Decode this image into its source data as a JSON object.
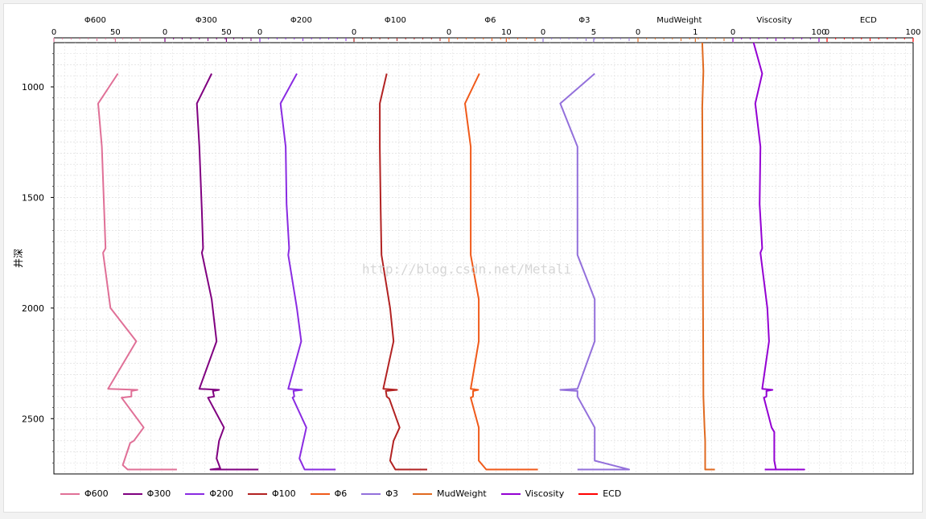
{
  "chart_data": {
    "type": "line",
    "orientation": "vertical-well-log",
    "y_axis": {
      "label": "井深",
      "range": [
        800,
        2750
      ],
      "ticks": [
        1000,
        1500,
        2000,
        2500
      ],
      "inverted": true,
      "grid": true
    },
    "x_tracks": [
      {
        "name": "Φ600",
        "color": "#e07097",
        "range": [
          0,
          70
        ],
        "ticks": [
          0,
          50
        ]
      },
      {
        "name": "Φ300",
        "color": "#800080",
        "range": [
          0,
          70
        ],
        "ticks": [
          0,
          50
        ]
      },
      {
        "name": "Φ200",
        "color": "#8a2be2",
        "range": [
          0,
          100
        ],
        "ticks": [
          0
        ]
      },
      {
        "name": "Φ100",
        "color": "#b22222",
        "range": [
          0,
          100
        ],
        "ticks": [
          0
        ]
      },
      {
        "name": "Φ6",
        "color": "#f05a1a",
        "range": [
          0,
          15
        ],
        "ticks": [
          0,
          10
        ]
      },
      {
        "name": "Φ3",
        "color": "#9370db",
        "range": [
          0,
          8.5
        ],
        "ticks": [
          0,
          5
        ]
      },
      {
        "name": "MudWeight",
        "color": "#e06a20",
        "range": [
          0,
          1.5
        ],
        "ticks": [
          0,
          1
        ]
      },
      {
        "name": "Viscosity",
        "color": "#9400d3",
        "range": [
          0,
          100
        ],
        "ticks": [
          0,
          100
        ]
      },
      {
        "name": "ECD",
        "color": "#ff0000",
        "range": [
          0,
          100
        ],
        "ticks": [
          0,
          100
        ]
      }
    ],
    "series": [
      {
        "name": "Φ600",
        "points": [
          [
            52,
            940
          ],
          [
            36,
            1075
          ],
          [
            39,
            1270
          ],
          [
            42,
            1730
          ],
          [
            40,
            1750
          ],
          [
            46,
            2000
          ],
          [
            67,
            2150
          ],
          [
            44,
            2365
          ],
          [
            68,
            2370
          ],
          [
            63,
            2375
          ],
          [
            63,
            2400
          ],
          [
            55,
            2405
          ],
          [
            73,
            2540
          ],
          [
            65,
            2600
          ],
          [
            62,
            2610
          ],
          [
            56,
            2710
          ],
          [
            60,
            2730
          ],
          [
            100,
            2730
          ]
        ]
      },
      {
        "name": "Φ300",
        "points": [
          [
            38,
            940
          ],
          [
            26,
            1075
          ],
          [
            28,
            1270
          ],
          [
            30,
            1560
          ],
          [
            31,
            1730
          ],
          [
            30,
            1750
          ],
          [
            38,
            1960
          ],
          [
            42,
            2150
          ],
          [
            28,
            2365
          ],
          [
            44,
            2370
          ],
          [
            39,
            2375
          ],
          [
            40,
            2400
          ],
          [
            35,
            2405
          ],
          [
            48,
            2540
          ],
          [
            44,
            2600
          ],
          [
            42,
            2680
          ],
          [
            45,
            2725
          ],
          [
            37,
            2730
          ],
          [
            76,
            2730
          ]
        ]
      },
      {
        "name": "Φ200",
        "points": [
          [
            43,
            940
          ],
          [
            24,
            1075
          ],
          [
            30,
            1270
          ],
          [
            31,
            1530
          ],
          [
            34,
            1730
          ],
          [
            33,
            1760
          ],
          [
            43,
            2000
          ],
          [
            48,
            2150
          ],
          [
            33,
            2365
          ],
          [
            49,
            2370
          ],
          [
            39,
            2375
          ],
          [
            40,
            2400
          ],
          [
            38,
            2405
          ],
          [
            54,
            2540
          ],
          [
            46,
            2680
          ],
          [
            52,
            2730
          ],
          [
            88,
            2730
          ]
        ]
      },
      {
        "name": "Φ100",
        "points": [
          [
            38,
            940
          ],
          [
            30,
            1075
          ],
          [
            30,
            1270
          ],
          [
            31,
            1560
          ],
          [
            32,
            1760
          ],
          [
            42,
            2000
          ],
          [
            46,
            2150
          ],
          [
            34,
            2365
          ],
          [
            50,
            2370
          ],
          [
            37,
            2375
          ],
          [
            38,
            2400
          ],
          [
            41,
            2410
          ],
          [
            53,
            2540
          ],
          [
            46,
            2600
          ],
          [
            42,
            2690
          ],
          [
            48,
            2730
          ],
          [
            85,
            2730
          ]
        ]
      },
      {
        "name": "Φ6",
        "points": [
          [
            5.3,
            940
          ],
          [
            2.8,
            1075
          ],
          [
            3.8,
            1270
          ],
          [
            3.8,
            1760
          ],
          [
            5.2,
            1960
          ],
          [
            5.2,
            2150
          ],
          [
            3.8,
            2365
          ],
          [
            5.1,
            2370
          ],
          [
            4.2,
            2375
          ],
          [
            4.2,
            2400
          ],
          [
            3.8,
            2405
          ],
          [
            5.2,
            2540
          ],
          [
            5.2,
            2690
          ],
          [
            6.5,
            2730
          ],
          [
            15.5,
            2730
          ]
        ]
      },
      {
        "name": "Φ3",
        "points": [
          [
            5.1,
            940
          ],
          [
            1.7,
            1075
          ],
          [
            3.4,
            1270
          ],
          [
            3.4,
            1760
          ],
          [
            5.1,
            1960
          ],
          [
            5.1,
            2150
          ],
          [
            3.4,
            2365
          ],
          [
            1.7,
            2370
          ],
          [
            3.4,
            2375
          ],
          [
            3.4,
            2400
          ],
          [
            5.1,
            2540
          ],
          [
            5.1,
            2690
          ],
          [
            8.5,
            2730
          ],
          [
            3.4,
            2730
          ]
        ]
      },
      {
        "name": "MudWeight",
        "points": [
          [
            1.12,
            800
          ],
          [
            1.14,
            930
          ],
          [
            1.12,
            1090
          ],
          [
            1.13,
            1760
          ],
          [
            1.14,
            2400
          ],
          [
            1.16,
            2540
          ],
          [
            1.17,
            2600
          ],
          [
            1.17,
            2730
          ],
          [
            1.34,
            2730
          ]
        ]
      },
      {
        "name": "Viscosity",
        "points": [
          [
            24,
            800
          ],
          [
            34,
            940
          ],
          [
            26,
            1075
          ],
          [
            32,
            1270
          ],
          [
            31,
            1530
          ],
          [
            34,
            1730
          ],
          [
            32,
            1750
          ],
          [
            40,
            2000
          ],
          [
            42,
            2150
          ],
          [
            34,
            2365
          ],
          [
            46,
            2370
          ],
          [
            39,
            2375
          ],
          [
            39,
            2400
          ],
          [
            36,
            2405
          ],
          [
            45,
            2540
          ],
          [
            48,
            2560
          ],
          [
            48,
            2690
          ],
          [
            50,
            2730
          ],
          [
            83,
            2730
          ],
          [
            37,
            2730
          ]
        ]
      },
      {
        "name": "ECD",
        "points": []
      }
    ],
    "legend": {
      "position": "bottom-left",
      "items": [
        "Φ600",
        "Φ300",
        "Φ200",
        "Φ100",
        "Φ6",
        "Φ3",
        "MudWeight",
        "Viscosity",
        "ECD"
      ]
    }
  },
  "watermark": "http://blog.csdn.net/Metali"
}
